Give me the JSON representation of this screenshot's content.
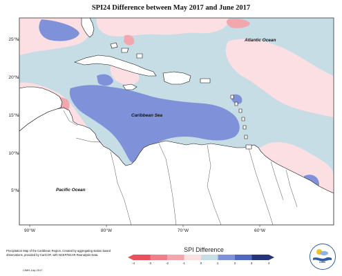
{
  "title": "SPI24 Difference between May 2017 and June 2017",
  "map": {
    "lat_ticks": [
      "25°N",
      "20°N",
      "15°N",
      "10°N",
      "5°N"
    ],
    "lon_ticks": [
      "90°W",
      "80°W",
      "70°W",
      "60°W"
    ],
    "labels": {
      "atlantic": "Atlantic Ocean",
      "caribbean": "Caribbean Sea",
      "pacific": "Pacific Ocean"
    },
    "colors": {
      "dry_strong": "#f4a6ae",
      "dry_light": "#fbdfe3",
      "neutral": "#ffffff",
      "wet_light": "#c6dde6",
      "wet_moderate": "#7f92d9",
      "wet_strong": "#5068c0"
    }
  },
  "legend": {
    "title": "SPI Difference",
    "ticks": [
      "-4",
      "-3",
      "-2",
      "-1",
      "0",
      "1",
      "2",
      "3",
      "4"
    ],
    "colors": [
      "#e8505c",
      "#ef7f89",
      "#f4a6ae",
      "#fbdfe3",
      "#ffffff",
      "#c6dde6",
      "#7f92d9",
      "#5068c0",
      "#28347a"
    ]
  },
  "footer": {
    "description": "Precipitation Map of the Caribbean Region. Created by aggregating station based observations, provided by CariCOF, with NCEP/NCAR Reanalysis Data.",
    "credit": "CIMH July 2017",
    "logo_text": "CIMH"
  }
}
